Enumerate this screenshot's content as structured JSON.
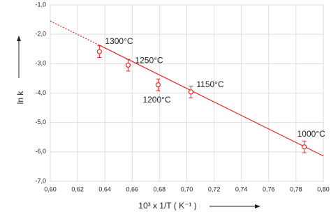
{
  "chart_data": {
    "type": "scatter",
    "x_label": "10³ x 1/T ( K⁻¹ )",
    "y_label": "ln k",
    "xlim": [
      0.6,
      0.8
    ],
    "ylim": [
      -7,
      -1
    ],
    "xticks": [
      {
        "value": 0.6,
        "label": "0,60"
      },
      {
        "value": 0.62,
        "label": "0,62"
      },
      {
        "value": 0.64,
        "label": "0,64"
      },
      {
        "value": 0.66,
        "label": "0,66"
      },
      {
        "value": 0.68,
        "label": "0,68"
      },
      {
        "value": 0.7,
        "label": "0,70"
      },
      {
        "value": 0.72,
        "label": "0,72"
      },
      {
        "value": 0.74,
        "label": "0,74"
      },
      {
        "value": 0.76,
        "label": "0,76"
      },
      {
        "value": 0.78,
        "label": "0,78"
      },
      {
        "value": 0.8,
        "label": "0,80"
      }
    ],
    "yticks": [
      {
        "value": -1,
        "label": "-1,0"
      },
      {
        "value": -2,
        "label": "-2,0"
      },
      {
        "value": -3,
        "label": "-3,0"
      },
      {
        "value": -4,
        "label": "-4,0"
      },
      {
        "value": -5,
        "label": "-5,0"
      },
      {
        "value": -6,
        "label": "-6,0"
      },
      {
        "value": -7,
        "label": "-7,0"
      }
    ],
    "grid": true,
    "color": "#e02828",
    "x": [
      0.636,
      0.657,
      0.679,
      0.703,
      0.786
    ],
    "values": [
      -2.59,
      -3.05,
      -3.72,
      -3.96,
      -5.83
    ],
    "errors": [
      0.2,
      0.2,
      0.2,
      0.2,
      0.2
    ],
    "labels": [
      "1300°C",
      "1250°C",
      "1200°C",
      "1150°C",
      "1000°C"
    ],
    "fit_lines": [
      {
        "style": "dotted",
        "x": [
          0.6,
          0.635
        ],
        "values": [
          -1.55,
          -2.35
        ]
      },
      {
        "style": "solid",
        "x": [
          0.635,
          0.8
        ],
        "values": [
          -2.35,
          -6.14
        ]
      }
    ]
  }
}
